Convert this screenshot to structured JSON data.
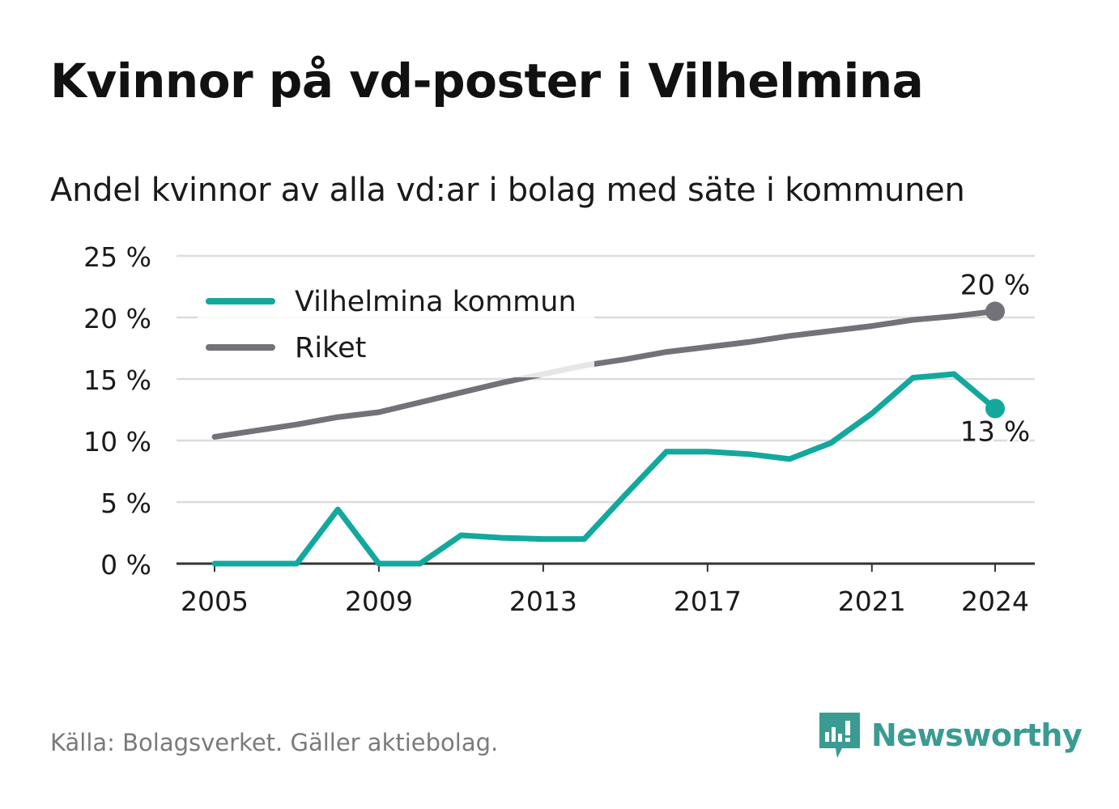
{
  "title": "Kvinnor på vd-poster i Vilhelmina",
  "subtitle": "Andel kvinnor av alla vd:ar i bolag med säte i kommunen",
  "source": "Källa: Bolagsverket. Gäller aktiebolag.",
  "brand": {
    "name": "Newsworthy",
    "icon": "newsworthy-logo-icon",
    "color": "#3a9b92"
  },
  "chart_data": {
    "type": "line",
    "x": [
      2005,
      2006,
      2007,
      2008,
      2009,
      2010,
      2011,
      2012,
      2013,
      2014,
      2015,
      2016,
      2017,
      2018,
      2019,
      2020,
      2021,
      2022,
      2023,
      2024
    ],
    "x_ticks": [
      2005,
      2009,
      2013,
      2017,
      2021,
      2024
    ],
    "y_ticks": [
      0,
      5,
      10,
      15,
      20,
      25
    ],
    "y_tick_suffix": " %",
    "ylim": [
      0,
      25
    ],
    "grid": true,
    "legend": "top-left",
    "series": [
      {
        "name": "Vilhelmina kommun",
        "color": "#13a89e",
        "values": [
          0,
          0,
          0,
          4.4,
          0,
          0,
          2.3,
          2.1,
          2.0,
          2.0,
          5.6,
          9.1,
          9.1,
          8.9,
          8.5,
          9.8,
          12.2,
          15.1,
          15.4,
          12.6
        ],
        "end_label": "13 %"
      },
      {
        "name": "Riket",
        "color": "#737279",
        "values": [
          10.3,
          10.8,
          11.3,
          11.9,
          12.3,
          13.1,
          13.9,
          14.7,
          15.4,
          16.1,
          16.6,
          17.2,
          17.6,
          18.0,
          18.5,
          18.9,
          19.3,
          19.8,
          20.1,
          20.5
        ],
        "end_label": "20 %"
      }
    ]
  }
}
